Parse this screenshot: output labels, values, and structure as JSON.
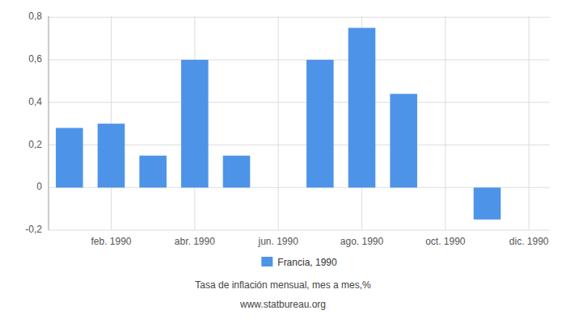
{
  "chart_data": {
    "type": "bar",
    "categories": [
      null,
      "feb. 1990",
      null,
      "abr. 1990",
      null,
      "jun. 1990",
      null,
      "ago. 1990",
      null,
      "oct. 1990",
      null,
      "dic. 1990"
    ],
    "series": [
      {
        "name": "Francia, 1990",
        "color": "#4d94e8",
        "values": [
          0.28,
          0.3,
          0.15,
          0.6,
          0.15,
          null,
          0.6,
          0.75,
          0.44,
          null,
          -0.15,
          null
        ]
      }
    ],
    "ylim": [
      -0.2,
      0.805
    ],
    "yticks": [
      {
        "value": -0.2,
        "label": "-0,2"
      },
      0,
      {
        "value": 0.2,
        "label": "0,2"
      },
      {
        "value": 0.4,
        "label": "0,4"
      },
      {
        "value": 0.6,
        "label": "0,6"
      },
      {
        "value": 0.8,
        "label": "0,8"
      }
    ],
    "x_label": "Tasa de inflación mensual, mes a mes,%",
    "annotations": [
      "www.statbureau.org"
    ],
    "grid": true,
    "legend": "bottom"
  }
}
